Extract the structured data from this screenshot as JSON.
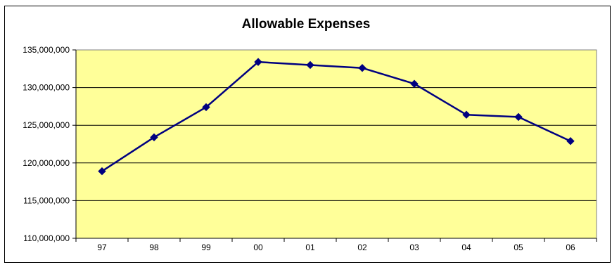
{
  "chart_data": {
    "type": "line",
    "title": "Allowable Expenses",
    "xlabel": "",
    "ylabel": "",
    "categories": [
      "97",
      "98",
      "99",
      "00",
      "01",
      "02",
      "03",
      "04",
      "05",
      "06"
    ],
    "series": [
      {
        "values": [
          118900000,
          123400000,
          127400000,
          133400000,
          133000000,
          132600000,
          130500000,
          126400000,
          126100000,
          122900000
        ]
      }
    ],
    "ylim": [
      110000000,
      135000000
    ],
    "yticks": [
      "110,000,000",
      "115,000,000",
      "120,000,000",
      "125,000,000",
      "130,000,000",
      "135,000,000"
    ],
    "ytick_values": [
      110000000,
      115000000,
      120000000,
      125000000,
      130000000,
      135000000
    ],
    "grid": true,
    "legend": "none",
    "colors": {
      "plot_background": "#FFFF99",
      "line": "#000080",
      "marker": "#000080",
      "gridline": "#000000"
    }
  }
}
